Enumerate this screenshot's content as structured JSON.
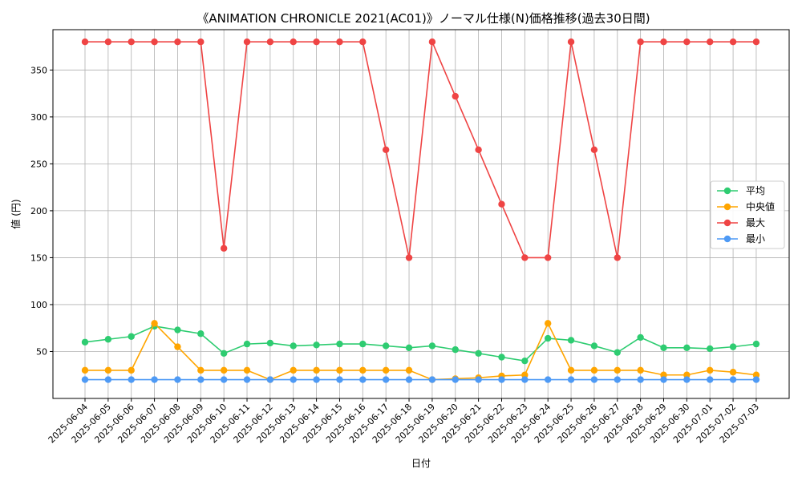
{
  "chart_data": {
    "type": "line",
    "title": "《ANIMATION CHRONICLE 2021(AC01)》ノーマル仕様(N)価格推移(過去30日間)",
    "xlabel": "日付",
    "ylabel": "値 (円)",
    "ylim": [
      0,
      393
    ],
    "yticks": [
      50,
      100,
      150,
      200,
      250,
      300,
      350
    ],
    "grid": true,
    "legend_position": "center-right",
    "categories": [
      "2025-06-04",
      "2025-06-05",
      "2025-06-06",
      "2025-06-07",
      "2025-06-08",
      "2025-06-09",
      "2025-06-10",
      "2025-06-11",
      "2025-06-12",
      "2025-06-13",
      "2025-06-14",
      "2025-06-15",
      "2025-06-16",
      "2025-06-17",
      "2025-06-18",
      "2025-06-19",
      "2025-06-20",
      "2025-06-21",
      "2025-06-22",
      "2025-06-23",
      "2025-06-24",
      "2025-06-25",
      "2025-06-26",
      "2025-06-27",
      "2025-06-28",
      "2025-06-29",
      "2025-06-30",
      "2025-07-01",
      "2025-07-02",
      "2025-07-03"
    ],
    "series": [
      {
        "name": "平均",
        "color": "#2ecc71",
        "values": [
          60,
          63,
          66,
          77,
          73,
          69,
          48,
          58,
          59,
          56,
          57,
          58,
          58,
          56,
          54,
          56,
          52,
          48,
          44,
          40,
          64,
          62,
          56,
          49,
          65,
          54,
          54,
          53,
          55,
          58
        ]
      },
      {
        "name": "中央値",
        "color": "#ffa500",
        "values": [
          30,
          30,
          30,
          80,
          55,
          30,
          30,
          30,
          20,
          30,
          30,
          30,
          30,
          30,
          30,
          20,
          21,
          22,
          24,
          25,
          80,
          30,
          30,
          30,
          30,
          25,
          25,
          30,
          28,
          25
        ]
      },
      {
        "name": "最大",
        "color": "#ef4444",
        "values": [
          380,
          380,
          380,
          380,
          380,
          380,
          160,
          380,
          380,
          380,
          380,
          380,
          380,
          265,
          150,
          380,
          322,
          265,
          207,
          150,
          150,
          380,
          265,
          150,
          380,
          380,
          380,
          380,
          380,
          380
        ]
      },
      {
        "name": "最小",
        "color": "#4e9af5",
        "values": [
          20,
          20,
          20,
          20,
          20,
          20,
          20,
          20,
          20,
          20,
          20,
          20,
          20,
          20,
          20,
          20,
          20,
          20,
          20,
          20,
          20,
          20,
          20,
          20,
          20,
          20,
          20,
          20,
          20,
          20
        ]
      }
    ]
  }
}
